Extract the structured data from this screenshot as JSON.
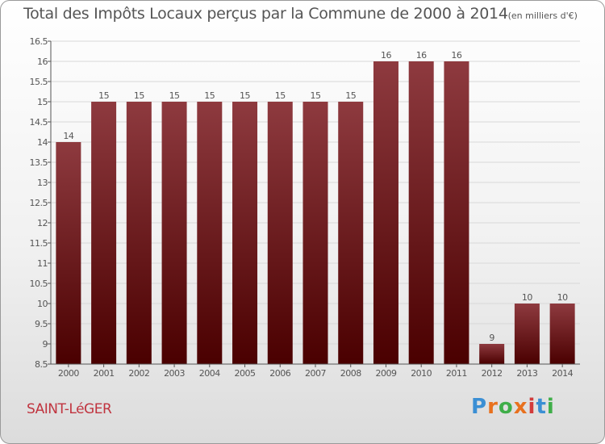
{
  "title": "Total des Impôts Locaux perçus par la Commune de 2000 à 2014",
  "unit": "(en milliers d'€)",
  "commune": "SAINT-LéGER",
  "logo": {
    "text": "Proxiti",
    "colors": [
      "#3b8fd4",
      "#e8711e",
      "#3fae49",
      "#e8711e",
      "#d23b3b",
      "#3b8fd4",
      "#3fae49"
    ]
  },
  "colors": {
    "bar_top": "#8e3a3f",
    "bar_bottom": "#4a0000",
    "axis": "#555555",
    "grid": "#d8d8d8",
    "text": "#555555",
    "commune": "#c0343f"
  },
  "chart_data": {
    "type": "bar",
    "categories": [
      "2000",
      "2001",
      "2002",
      "2003",
      "2004",
      "2005",
      "2006",
      "2007",
      "2008",
      "2009",
      "2010",
      "2011",
      "2012",
      "2013",
      "2014"
    ],
    "values": [
      14,
      15,
      15,
      15,
      15,
      15,
      15,
      15,
      15,
      16,
      16,
      16,
      9,
      10,
      10
    ],
    "value_labels": [
      "14",
      "15",
      "15",
      "15",
      "15",
      "15",
      "15",
      "15",
      "15",
      "16",
      "16",
      "16",
      "9",
      "10",
      "10"
    ],
    "ylim": [
      8.5,
      16.5
    ],
    "yticks": [
      "8.5",
      "9",
      "9.5",
      "10",
      "10.5",
      "11",
      "11.5",
      "12",
      "12.5",
      "13",
      "13.5",
      "14",
      "14.5",
      "15",
      "15.5",
      "16",
      "16.5"
    ],
    "grid": true,
    "xlabel": "",
    "ylabel": ""
  }
}
